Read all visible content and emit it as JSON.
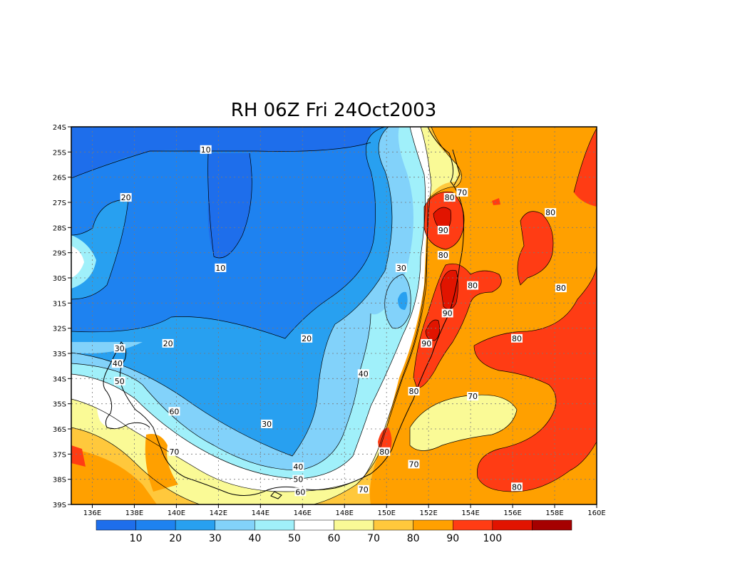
{
  "title": "RH 06Z Fri 24Oct2003",
  "map": {
    "lat_labels": [
      "24S",
      "25S",
      "26S",
      "27S",
      "28S",
      "29S",
      "30S",
      "31S",
      "32S",
      "33S",
      "34S",
      "35S",
      "36S",
      "37S",
      "38S",
      "39S"
    ],
    "lon_labels": [
      "136E",
      "138E",
      "140E",
      "142E",
      "144E",
      "146E",
      "148E",
      "150E",
      "152E",
      "154E",
      "156E",
      "158E",
      "160E"
    ],
    "contour_labels": [
      {
        "text": "10",
        "lon": 141.4,
        "lat": -24.9
      },
      {
        "text": "10",
        "lon": 142.1,
        "lat": -29.6
      },
      {
        "text": "20",
        "lon": 137.6,
        "lat": -26.8
      },
      {
        "text": "20",
        "lon": 139.6,
        "lat": -32.6
      },
      {
        "text": "20",
        "lon": 146.2,
        "lat": -32.4
      },
      {
        "text": "30",
        "lon": 137.3,
        "lat": -32.8
      },
      {
        "text": "30",
        "lon": 150.7,
        "lat": -29.6
      },
      {
        "text": "30",
        "lon": 144.3,
        "lat": -35.8
      },
      {
        "text": "40",
        "lon": 137.2,
        "lat": -33.4
      },
      {
        "text": "40",
        "lon": 148.9,
        "lat": -33.8
      },
      {
        "text": "40",
        "lon": 145.8,
        "lat": -37.5
      },
      {
        "text": "50",
        "lon": 137.3,
        "lat": -34.1
      },
      {
        "text": "50",
        "lon": 145.8,
        "lat": -38.0
      },
      {
        "text": "60",
        "lon": 139.9,
        "lat": -35.3
      },
      {
        "text": "60",
        "lon": 145.9,
        "lat": -38.5
      },
      {
        "text": "70",
        "lon": 139.9,
        "lat": -36.9
      },
      {
        "text": "70",
        "lon": 153.6,
        "lat": -26.6
      },
      {
        "text": "70",
        "lon": 154.1,
        "lat": -34.7
      },
      {
        "text": "70",
        "lon": 151.3,
        "lat": -37.4
      },
      {
        "text": "70",
        "lon": 148.9,
        "lat": -38.4
      },
      {
        "text": "80",
        "lon": 153.0,
        "lat": -26.8
      },
      {
        "text": "80",
        "lon": 152.7,
        "lat": -29.1
      },
      {
        "text": "80",
        "lon": 154.1,
        "lat": -30.3
      },
      {
        "text": "80",
        "lon": 157.8,
        "lat": -27.4
      },
      {
        "text": "80",
        "lon": 158.3,
        "lat": -30.4
      },
      {
        "text": "80",
        "lon": 156.2,
        "lat": -32.4
      },
      {
        "text": "80",
        "lon": 151.3,
        "lat": -34.5
      },
      {
        "text": "80",
        "lon": 149.9,
        "lat": -36.9
      },
      {
        "text": "80",
        "lon": 156.2,
        "lat": -38.3
      },
      {
        "text": "90",
        "lon": 152.7,
        "lat": -28.1
      },
      {
        "text": "90",
        "lon": 152.9,
        "lat": -31.4
      },
      {
        "text": "90",
        "lon": 151.9,
        "lat": -32.6
      }
    ]
  },
  "colorbar": {
    "labels": [
      "10",
      "20",
      "30",
      "40",
      "50",
      "60",
      "70",
      "80",
      "90",
      "100"
    ],
    "colors": [
      "#1e6eeb",
      "#1e82f0",
      "#28a0f0",
      "#82d2fa",
      "#a0f0fa",
      "#ffffff",
      "#fafa96",
      "#ffc83c",
      "#ffa000",
      "#ff3c14",
      "#e11400",
      "#a50000"
    ]
  }
}
